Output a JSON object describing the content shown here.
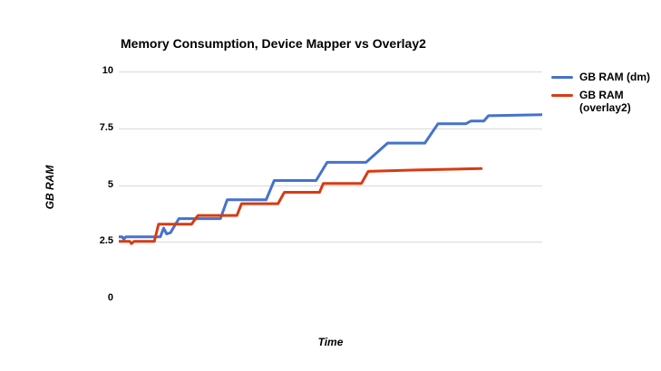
{
  "title": "Memory Consumption, Device Mapper vs Overlay2",
  "colors": {
    "dm_blue": "#4472cd",
    "overlay_red": "#d93b12",
    "gridline": "#d9d9d9",
    "zero_axis": "#000000",
    "text": "#000000",
    "background": "#ffffff"
  },
  "legend": {
    "entries": [
      {
        "label": "GB RAM (dm)",
        "series": "dm"
      },
      {
        "label": "GB RAM (overlay2)",
        "series": "overlay2"
      }
    ]
  },
  "chart_data": {
    "type": "line",
    "title": "Memory Consumption, Device Mapper vs Overlay2",
    "xlabel": "Time",
    "ylabel": "GB RAM",
    "ylim": [
      0,
      10
    ],
    "xlim": [
      0,
      100
    ],
    "yticks": [
      0,
      2.5,
      5,
      7.5,
      10
    ],
    "ytick_labels": [
      "0",
      "2.5",
      "5",
      "7.5",
      "10"
    ],
    "xtick_labels": [],
    "grid": true,
    "legend_position": "right",
    "series": [
      {
        "name": "GB RAM (dm)",
        "color": "#4472cd",
        "points": [
          [
            0,
            2.72
          ],
          [
            0.8,
            2.72
          ],
          [
            1.2,
            2.62
          ],
          [
            1.7,
            2.72
          ],
          [
            9.8,
            2.72
          ],
          [
            10.6,
            3.1
          ],
          [
            11.3,
            2.85
          ],
          [
            12.2,
            2.9
          ],
          [
            14.2,
            3.52
          ],
          [
            24.0,
            3.52
          ],
          [
            25.6,
            4.35
          ],
          [
            34.8,
            4.35
          ],
          [
            36.7,
            5.2
          ],
          [
            46.6,
            5.2
          ],
          [
            49.2,
            6.0
          ],
          [
            58.4,
            6.0
          ],
          [
            63.5,
            6.85
          ],
          [
            72.3,
            6.85
          ],
          [
            75.4,
            7.7
          ],
          [
            82.0,
            7.7
          ],
          [
            83.2,
            7.82
          ],
          [
            86.2,
            7.82
          ],
          [
            87.3,
            8.05
          ],
          [
            100,
            8.1
          ]
        ]
      },
      {
        "name": "GB RAM (overlay2)",
        "color": "#d93b12",
        "points": [
          [
            0,
            2.52
          ],
          [
            2.6,
            2.52
          ],
          [
            3.0,
            2.42
          ],
          [
            3.6,
            2.52
          ],
          [
            8.4,
            2.52
          ],
          [
            9.4,
            3.28
          ],
          [
            17.2,
            3.28
          ],
          [
            18.7,
            3.66
          ],
          [
            27.9,
            3.66
          ],
          [
            29.0,
            4.18
          ],
          [
            37.6,
            4.18
          ],
          [
            39.1,
            4.68
          ],
          [
            47.4,
            4.68
          ],
          [
            48.3,
            5.07
          ],
          [
            57.3,
            5.07
          ],
          [
            58.9,
            5.6
          ],
          [
            70.0,
            5.66
          ],
          [
            85.6,
            5.73
          ]
        ]
      }
    ]
  }
}
